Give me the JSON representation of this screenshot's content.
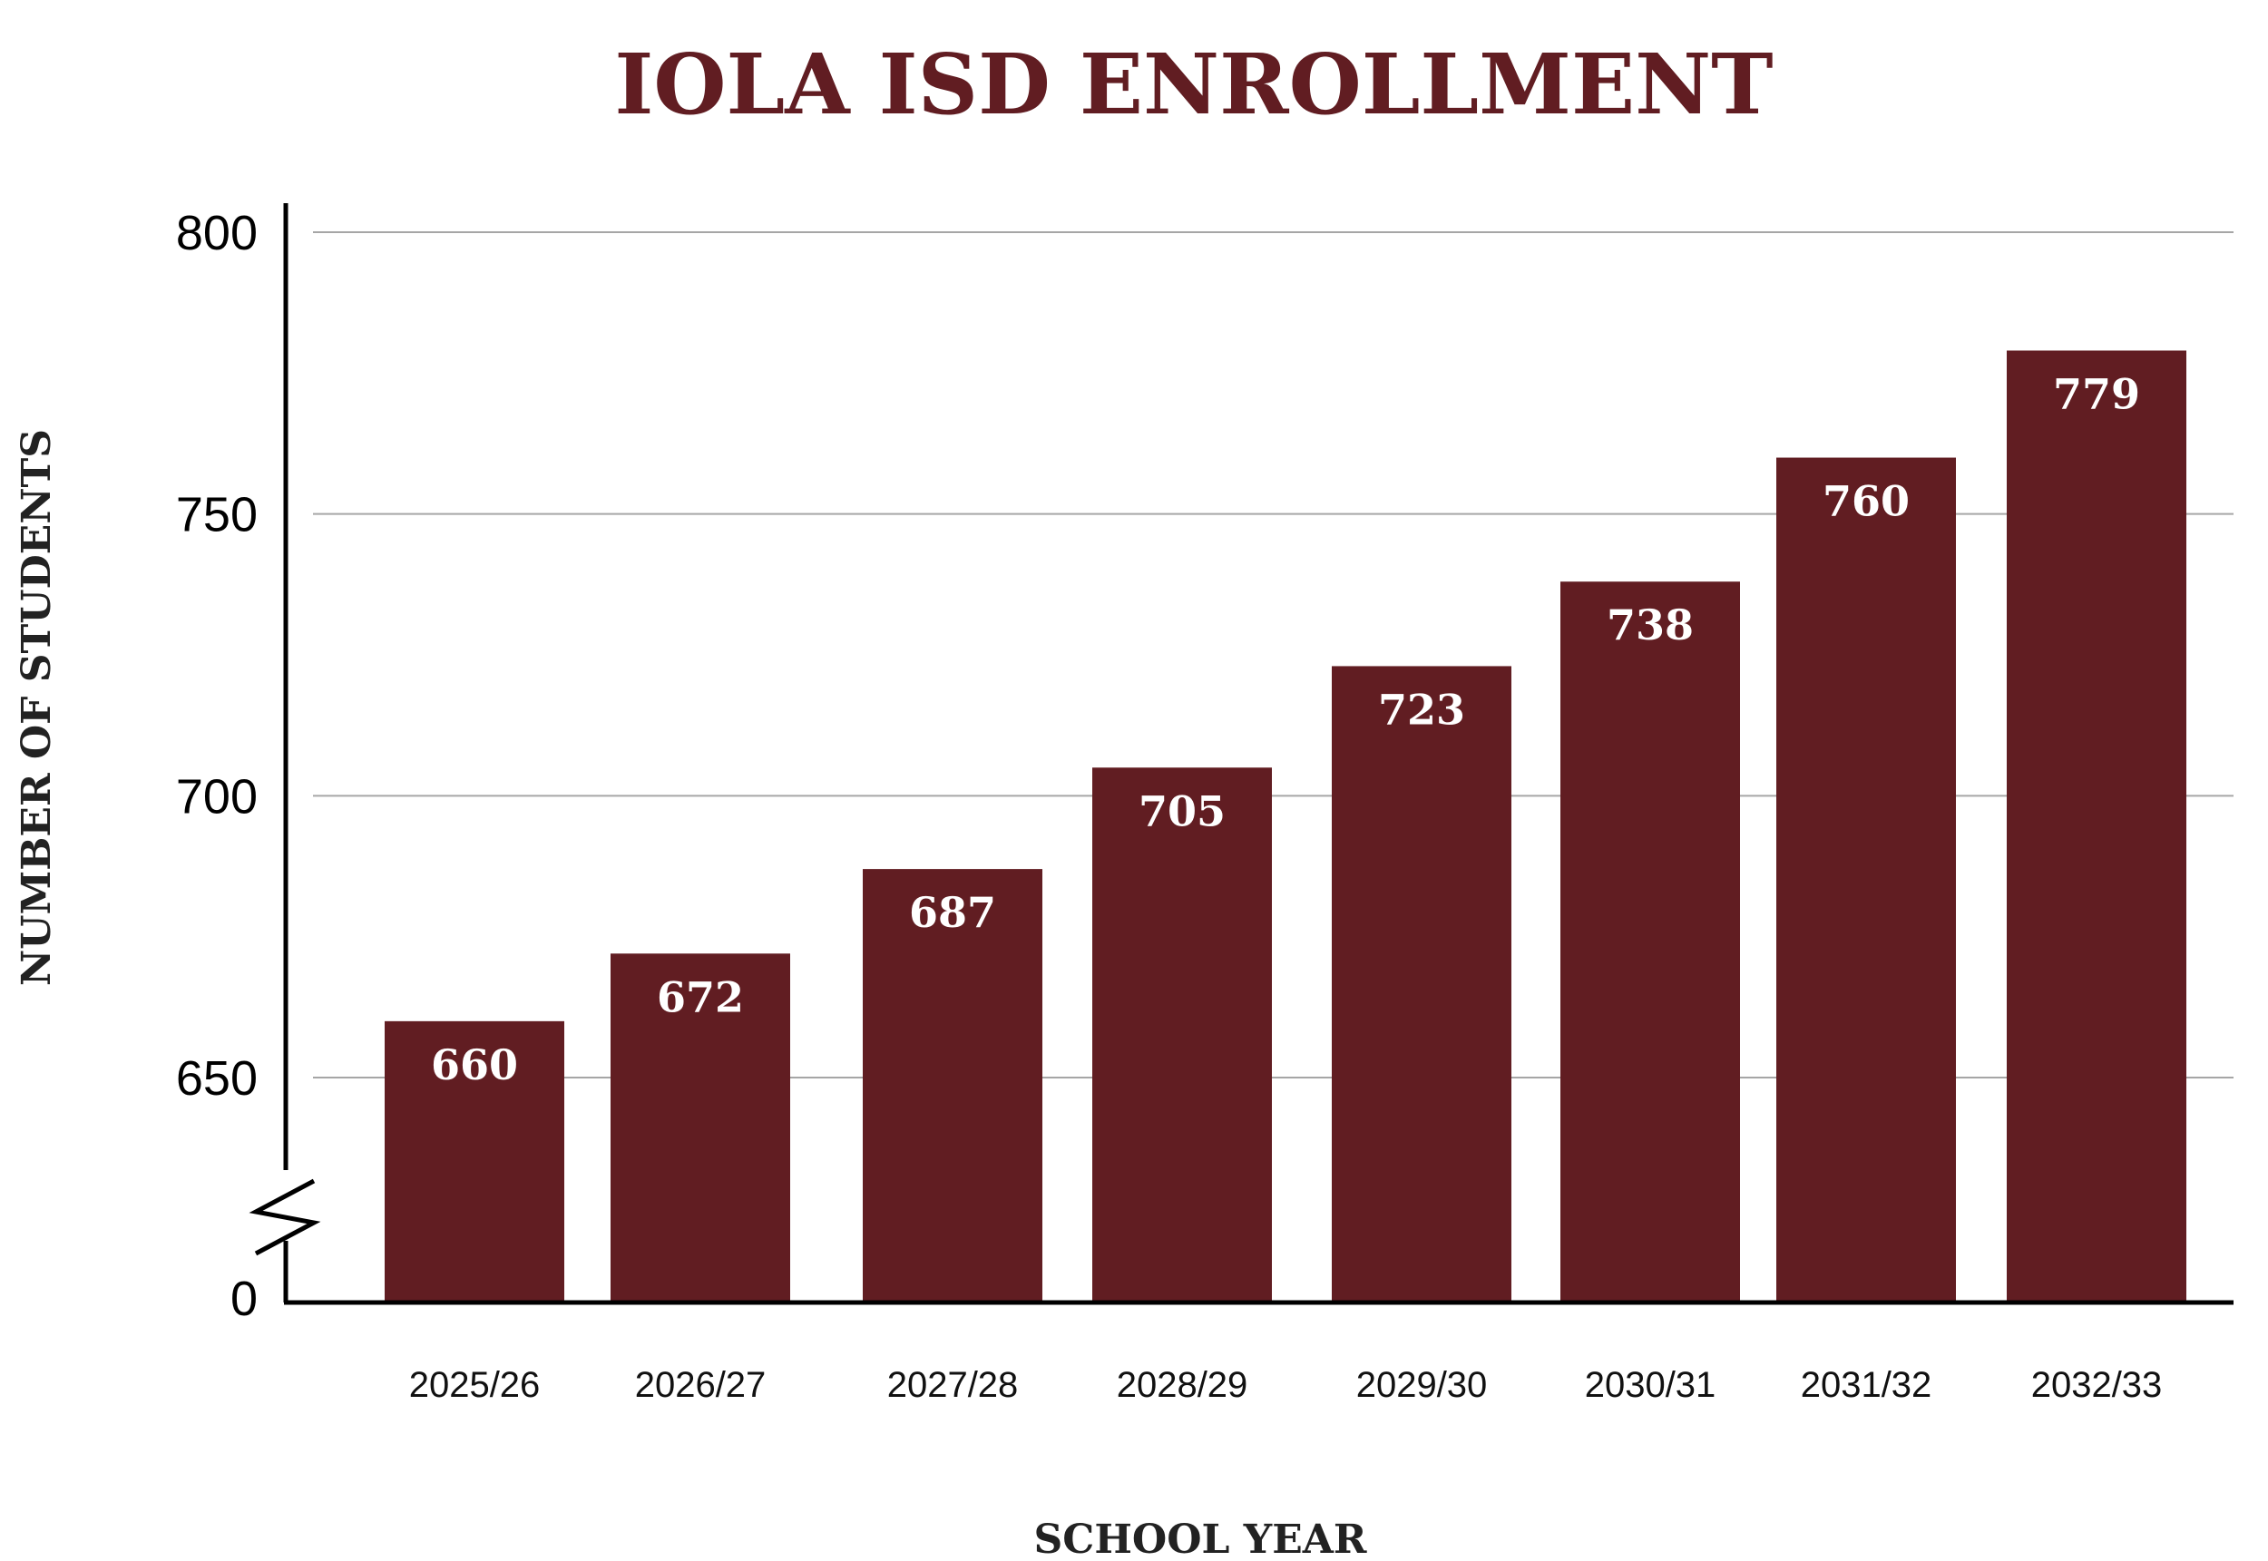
{
  "chart_data": {
    "type": "bar",
    "title": "IOLA ISD ENROLLMENT",
    "xlabel": "SCHOOL YEAR",
    "ylabel": "NUMBER OF STUDENTS",
    "categories": [
      "2025/26",
      "2026/27",
      "2027/28",
      "2028/29",
      "2029/30",
      "2030/31",
      "2031/32",
      "2032/33"
    ],
    "values": [
      660,
      672,
      687,
      705,
      723,
      738,
      760,
      779
    ],
    "y_axis": {
      "ticks": [
        650,
        700,
        750,
        800
      ],
      "baseline_label": "0",
      "broken_axis": true,
      "range": [
        620,
        800
      ]
    },
    "grid": "horizontal",
    "legend": "none"
  },
  "colors": {
    "bar": "#611d22",
    "title": "#611d22",
    "axis": "#000000",
    "grid": "#a6a6a6",
    "axis_title": "#222222",
    "bar_label": "#ffffff"
  }
}
